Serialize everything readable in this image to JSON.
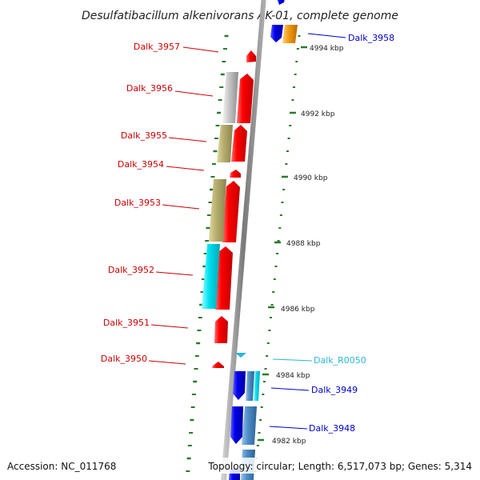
{
  "title": "Desulfatibacillum alkenivorans AK-01, complete genome",
  "footer": {
    "accession": "Accession: NC_011768",
    "summary": "Topology: circular; Length: 6,517,073 bp; Genes: 5,314"
  },
  "colors": {
    "minus_cds": "#ff0000",
    "plus_cds": "#0000ee",
    "protein_gene": "#c8c8c8",
    "cog_yellow": "#b8b070",
    "cog_cyan": "#00e0f0",
    "cog_blue": "#4f8fc8",
    "rna": "#29b6d9",
    "orange": "#f39c12",
    "tick": "#2a7a2a",
    "backbone": "#808080"
  },
  "scale_labels": [
    "4994 kbp",
    "4992 kbp",
    "4990 kbp",
    "4988 kbp",
    "4986 kbp",
    "4984 kbp",
    "4982 kbp"
  ],
  "genes": [
    {
      "label": "Dalk_3958",
      "strand": "plus",
      "color": "#0000cc"
    },
    {
      "label": "Dalk_3957",
      "strand": "minus",
      "color": "#cc0000"
    },
    {
      "label": "Dalk_3956",
      "strand": "minus",
      "color": "#cc0000"
    },
    {
      "label": "Dalk_3955",
      "strand": "minus",
      "color": "#cc0000"
    },
    {
      "label": "Dalk_3954",
      "strand": "minus",
      "color": "#cc0000"
    },
    {
      "label": "Dalk_3953",
      "strand": "minus",
      "color": "#cc0000"
    },
    {
      "label": "Dalk_3952",
      "strand": "minus",
      "color": "#cc0000"
    },
    {
      "label": "Dalk_3951",
      "strand": "minus",
      "color": "#cc0000"
    },
    {
      "label": "Dalk_3950",
      "strand": "minus",
      "color": "#cc0000"
    },
    {
      "label": "Dalk_R0050",
      "strand": "plus",
      "color": "#29b6d9"
    },
    {
      "label": "Dalk_3949",
      "strand": "plus",
      "color": "#0000cc"
    },
    {
      "label": "Dalk_3948",
      "strand": "plus",
      "color": "#0000cc"
    }
  ]
}
